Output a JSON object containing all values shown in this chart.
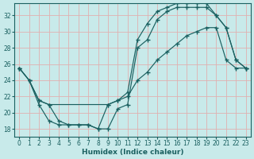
{
  "xlabel": "Humidex (Indice chaleur)",
  "xlim": [
    -0.5,
    23.5
  ],
  "ylim": [
    17,
    33.5
  ],
  "yticks": [
    18,
    20,
    22,
    24,
    26,
    28,
    30,
    32
  ],
  "xticks": [
    0,
    1,
    2,
    3,
    4,
    5,
    6,
    7,
    8,
    9,
    10,
    11,
    12,
    13,
    14,
    15,
    16,
    17,
    18,
    19,
    20,
    21,
    22,
    23
  ],
  "bg_color": "#c8eaea",
  "line_color": "#1a6060",
  "grid_color": "#e0b0b0",
  "line_top_x": [
    0,
    1,
    2,
    3,
    4,
    5,
    6,
    7,
    8,
    9,
    10,
    11,
    12,
    13,
    14,
    15,
    16,
    17,
    18,
    19,
    20,
    21,
    22,
    23
  ],
  "line_top_y": [
    25.5,
    24.0,
    21.0,
    19.0,
    18.5,
    18.5,
    18.5,
    18.5,
    18.0,
    18.0,
    20.5,
    21.0,
    28.0,
    29.0,
    31.5,
    32.5,
    33.0,
    33.0,
    33.0,
    33.0,
    32.0,
    30.5,
    26.5,
    25.5
  ],
  "line_mid_x": [
    0,
    1,
    2,
    3,
    9,
    10,
    11,
    12,
    13,
    14,
    15,
    16,
    17,
    18,
    19,
    20,
    21,
    22,
    23
  ],
  "line_mid_y": [
    25.5,
    24.0,
    21.5,
    21.0,
    21.0,
    21.5,
    22.5,
    29.0,
    31.0,
    32.5,
    33.0,
    33.5,
    33.5,
    33.5,
    33.5,
    32.0,
    30.5,
    26.5,
    25.5
  ],
  "line_bot_x": [
    0,
    1,
    2,
    3,
    4,
    5,
    6,
    7,
    8,
    9,
    10,
    11,
    12,
    13,
    14,
    15,
    16,
    17,
    18,
    19,
    20,
    21,
    22,
    23
  ],
  "line_bot_y": [
    25.5,
    24.0,
    21.5,
    21.0,
    19.0,
    18.5,
    18.5,
    18.5,
    18.0,
    21.0,
    21.5,
    22.0,
    24.0,
    25.0,
    26.5,
    27.5,
    28.5,
    29.5,
    30.0,
    30.5,
    30.5,
    26.5,
    25.5,
    25.5
  ]
}
